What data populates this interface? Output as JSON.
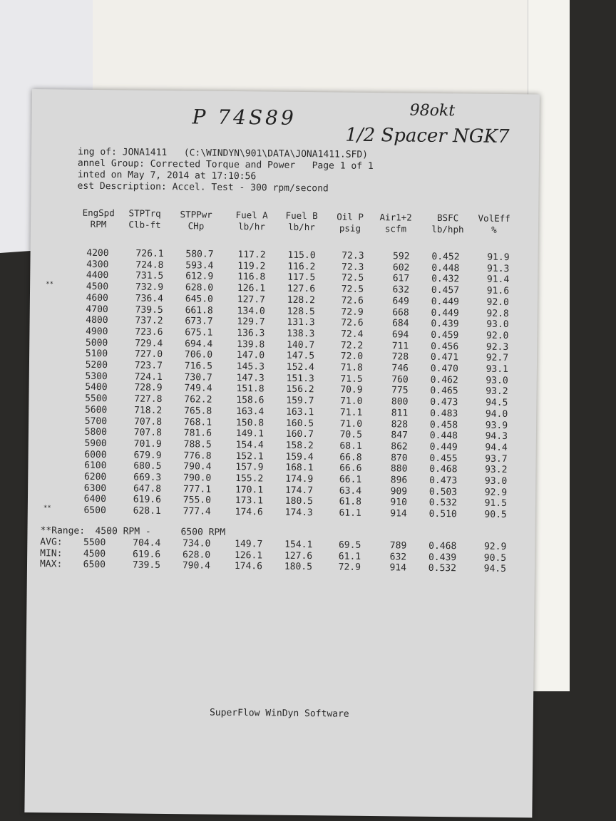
{
  "handwriting": {
    "line1": "P 74S89",
    "octane": "98okt",
    "line2": "1/2 Spacer NGK7"
  },
  "header": {
    "listing": "ing of: JONA1411   (C:\\WINDYN\\901\\DATA\\JONA1411.SFD)",
    "channel_group": "annel Group: Corrected Torque and Power   Page 1 of 1",
    "printed": "inted on May 7, 2014 at 17:10:56",
    "description": "est Description: Accel. Test - 300 rpm/second"
  },
  "columns": [
    {
      "name": "EngSpd",
      "unit": "RPM"
    },
    {
      "name": "STPTrq",
      "unit": "Clb-ft"
    },
    {
      "name": "STPPwr",
      "unit": "CHp"
    },
    {
      "name": "Fuel A",
      "unit": "lb/hr"
    },
    {
      "name": "Fuel B",
      "unit": "lb/hr"
    },
    {
      "name": "Oil P",
      "unit": "psig"
    },
    {
      "name": "Air1+2",
      "unit": "scfm"
    },
    {
      "name": "BSFC",
      "unit": "lb/hph"
    },
    {
      "name": "VolEff",
      "unit": "%"
    }
  ],
  "rows": [
    {
      "mark": "",
      "values": [
        "4200",
        "726.1",
        "580.7",
        "117.2",
        "115.0",
        "72.3",
        "592",
        "0.452",
        "91.9"
      ]
    },
    {
      "mark": "",
      "values": [
        "4300",
        "724.8",
        "593.4",
        "119.2",
        "116.2",
        "72.3",
        "602",
        "0.448",
        "91.3"
      ]
    },
    {
      "mark": "",
      "values": [
        "4400",
        "731.5",
        "612.9",
        "116.8",
        "117.5",
        "72.5",
        "617",
        "0.432",
        "91.4"
      ]
    },
    {
      "mark": "**",
      "values": [
        "4500",
        "732.9",
        "628.0",
        "126.1",
        "127.6",
        "72.5",
        "632",
        "0.457",
        "91.6"
      ]
    },
    {
      "mark": "",
      "values": [
        "4600",
        "736.4",
        "645.0",
        "127.7",
        "128.2",
        "72.6",
        "649",
        "0.449",
        "92.0"
      ]
    },
    {
      "mark": "",
      "values": [
        "4700",
        "739.5",
        "661.8",
        "134.0",
        "128.5",
        "72.9",
        "668",
        "0.449",
        "92.8"
      ]
    },
    {
      "mark": "",
      "values": [
        "4800",
        "737.2",
        "673.7",
        "129.7",
        "131.3",
        "72.6",
        "684",
        "0.439",
        "93.0"
      ]
    },
    {
      "mark": "",
      "values": [
        "4900",
        "723.6",
        "675.1",
        "136.3",
        "138.3",
        "72.4",
        "694",
        "0.459",
        "92.0"
      ]
    },
    {
      "mark": "",
      "values": [
        "5000",
        "729.4",
        "694.4",
        "139.8",
        "140.7",
        "72.2",
        "711",
        "0.456",
        "92.3"
      ]
    },
    {
      "mark": "",
      "values": [
        "5100",
        "727.0",
        "706.0",
        "147.0",
        "147.5",
        "72.0",
        "728",
        "0.471",
        "92.7"
      ]
    },
    {
      "mark": "",
      "values": [
        "5200",
        "723.7",
        "716.5",
        "145.3",
        "152.4",
        "71.8",
        "746",
        "0.470",
        "93.1"
      ]
    },
    {
      "mark": "",
      "values": [
        "5300",
        "724.1",
        "730.7",
        "147.3",
        "151.3",
        "71.5",
        "760",
        "0.462",
        "93.0"
      ]
    },
    {
      "mark": "",
      "values": [
        "5400",
        "728.9",
        "749.4",
        "151.8",
        "156.2",
        "70.9",
        "775",
        "0.465",
        "93.2"
      ]
    },
    {
      "mark": "",
      "values": [
        "5500",
        "727.8",
        "762.2",
        "158.6",
        "159.7",
        "71.0",
        "800",
        "0.473",
        "94.5"
      ]
    },
    {
      "mark": "",
      "values": [
        "5600",
        "718.2",
        "765.8",
        "163.4",
        "163.1",
        "71.1",
        "811",
        "0.483",
        "94.0"
      ]
    },
    {
      "mark": "",
      "values": [
        "5700",
        "707.8",
        "768.1",
        "150.8",
        "160.5",
        "71.0",
        "828",
        "0.458",
        "93.9"
      ]
    },
    {
      "mark": "",
      "values": [
        "5800",
        "707.8",
        "781.6",
        "149.1",
        "160.7",
        "70.5",
        "847",
        "0.448",
        "94.3"
      ]
    },
    {
      "mark": "",
      "values": [
        "5900",
        "701.9",
        "788.5",
        "154.4",
        "158.2",
        "68.1",
        "862",
        "0.449",
        "94.4"
      ]
    },
    {
      "mark": "",
      "values": [
        "6000",
        "679.9",
        "776.8",
        "152.1",
        "159.4",
        "66.8",
        "870",
        "0.455",
        "93.7"
      ]
    },
    {
      "mark": "",
      "values": [
        "6100",
        "680.5",
        "790.4",
        "157.9",
        "168.1",
        "66.6",
        "880",
        "0.468",
        "93.2"
      ]
    },
    {
      "mark": "",
      "values": [
        "6200",
        "669.3",
        "790.0",
        "155.2",
        "174.9",
        "66.1",
        "896",
        "0.473",
        "93.0"
      ]
    },
    {
      "mark": "",
      "values": [
        "6300",
        "647.8",
        "777.1",
        "170.1",
        "174.7",
        "63.4",
        "909",
        "0.503",
        "92.9"
      ]
    },
    {
      "mark": "",
      "values": [
        "6400",
        "619.6",
        "755.0",
        "173.1",
        "180.5",
        "61.8",
        "910",
        "0.532",
        "91.5"
      ]
    },
    {
      "mark": "**",
      "values": [
        "6500",
        "628.1",
        "777.4",
        "174.6",
        "174.3",
        "61.1",
        "914",
        "0.510",
        "90.5"
      ]
    }
  ],
  "range": {
    "label": "**Range:",
    "from": "4500 RPM -",
    "to": "6500 RPM"
  },
  "summary": [
    {
      "label": "AVG:",
      "values": [
        "5500",
        "704.4",
        "734.0",
        "149.7",
        "154.1",
        "69.5",
        "789",
        "0.468",
        "92.9"
      ]
    },
    {
      "label": "MIN:",
      "values": [
        "4500",
        "619.6",
        "628.0",
        "126.1",
        "127.6",
        "61.1",
        "632",
        "0.439",
        "90.5"
      ]
    },
    {
      "label": "MAX:",
      "values": [
        "6500",
        "739.5",
        "790.4",
        "174.6",
        "180.5",
        "72.9",
        "914",
        "0.532",
        "94.5"
      ]
    }
  ],
  "footer": "SuperFlow WinDyn Software"
}
